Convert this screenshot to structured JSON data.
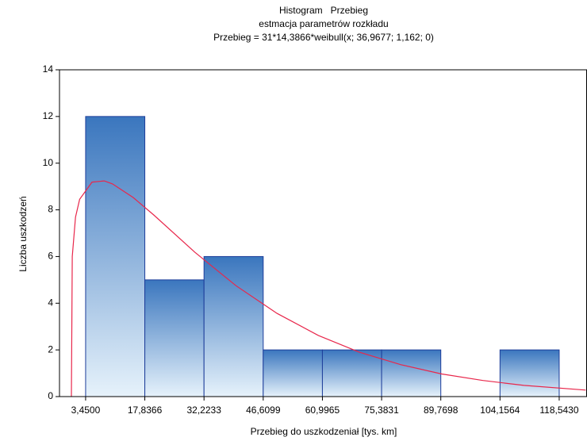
{
  "chart_data": {
    "type": "histogram",
    "title": [
      "Histogram   Przebieg",
      "estmacja parametrów rozkładu",
      "Przebieg = 31*14,3866*weibull(x; 36,9677; 1,162; 0)"
    ],
    "xlabel": "Przebieg do uszkodzeniał [tys. km]",
    "ylabel": "Liczba uszkodzeń",
    "bins": [
      3.45,
      17.8366,
      32.2233,
      46.6099,
      60.9965,
      75.3831,
      89.7698,
      104.1564,
      118.543
    ],
    "values": [
      12,
      5,
      6,
      2,
      2,
      2,
      0,
      2
    ],
    "color": "#3a76be",
    "xlim": [
      -2.9,
      125.3
    ],
    "ylim": [
      0,
      14
    ],
    "xticks": [
      {
        "value": 3.45,
        "label": "3,4500"
      },
      {
        "value": 17.8366,
        "label": "17,8366"
      },
      {
        "value": 32.2233,
        "label": "32,2233"
      },
      {
        "value": 46.6099,
        "label": "46,6099"
      },
      {
        "value": 60.9965,
        "label": "60,9965"
      },
      {
        "value": 75.3831,
        "label": "75,3831"
      },
      {
        "value": 89.7698,
        "label": "89,7698"
      },
      {
        "value": 104.1564,
        "label": "104,1564"
      },
      {
        "value": 118.543,
        "label": "118,5430"
      }
    ],
    "yticks": [
      0,
      2,
      4,
      6,
      8,
      10,
      12,
      14
    ],
    "curve": {
      "color": "#e8274b",
      "x": [
        0,
        0.2,
        1,
        2,
        5,
        8,
        10,
        15,
        20,
        30,
        40,
        50,
        60,
        70,
        80,
        90,
        100,
        110,
        125
      ],
      "values": [
        0,
        6.0,
        7.69,
        8.45,
        9.19,
        9.24,
        9.11,
        8.53,
        7.78,
        6.18,
        4.75,
        3.56,
        2.62,
        1.9,
        1.37,
        0.97,
        0.69,
        0.48,
        0.28
      ]
    }
  }
}
